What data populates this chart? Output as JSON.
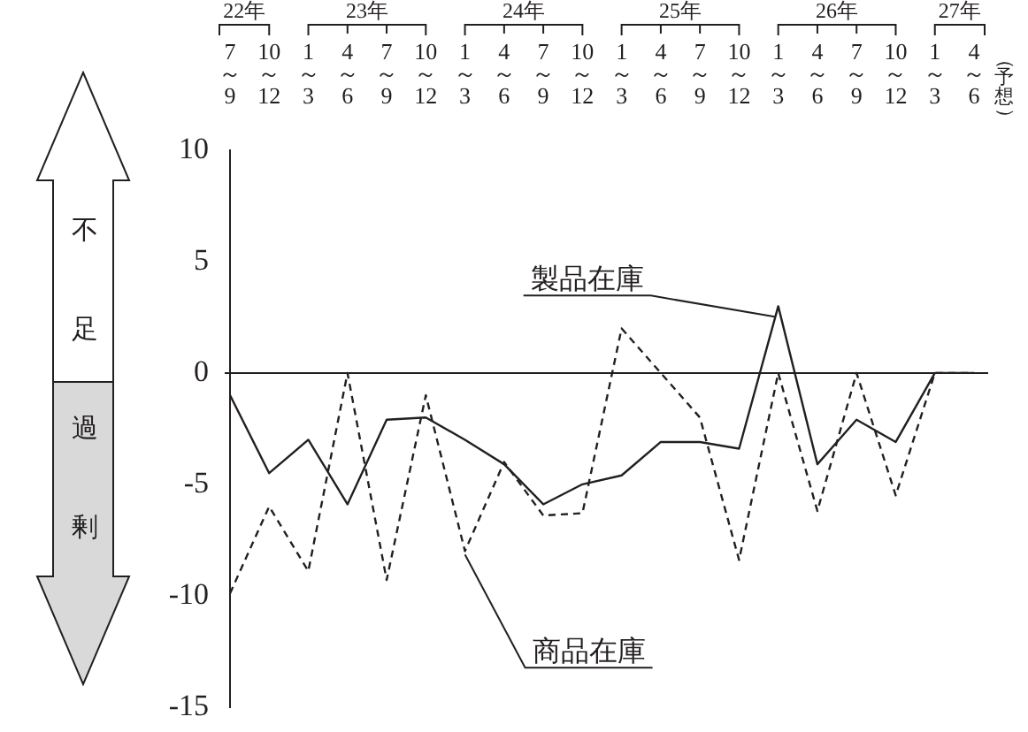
{
  "chart_data": {
    "type": "line",
    "categories": [
      "7～9",
      "10～12",
      "1～3",
      "4～6",
      "7～9",
      "10～12",
      "1～3",
      "4～6",
      "7～9",
      "10～12",
      "1～3",
      "4～6",
      "7～9",
      "10～12",
      "1～3",
      "4～6",
      "7～9",
      "10～12",
      "1～3",
      "4～6"
    ],
    "series": [
      {
        "name": "製品在庫",
        "color": "#231f20",
        "line_style": "solid",
        "values": [
          -1.0,
          -4.5,
          -3.0,
          -5.9,
          -2.1,
          -2.0,
          -3.0,
          -4.1,
          -5.9,
          -5.0,
          -4.6,
          -3.1,
          -3.1,
          -3.4,
          3.0,
          -4.1,
          -2.1,
          -3.1,
          0,
          0
        ]
      },
      {
        "name": "商品在庫",
        "color": "#231f20",
        "line_style": "dashed",
        "values": [
          -9.9,
          -6.0,
          -8.9,
          0,
          -9.3,
          -1.0,
          -8.0,
          -4.0,
          -6.4,
          -6.3,
          2.0,
          0,
          -2.0,
          -8.4,
          0,
          -6.2,
          0,
          -5.5,
          0,
          0
        ]
      }
    ],
    "ylim": [
      -15,
      10
    ],
    "yticks": [
      -15,
      -10,
      -5,
      0,
      5,
      10
    ],
    "ref_lines": [
      {
        "axis": "y",
        "value": 0,
        "color": "#231f20"
      }
    ],
    "annotations": [
      "不足",
      "過剰",
      "（予想）",
      "22年",
      "23年",
      "24年",
      "25年",
      "26年",
      "27年"
    ],
    "grid": false,
    "legend": false,
    "marker": "none"
  }
}
